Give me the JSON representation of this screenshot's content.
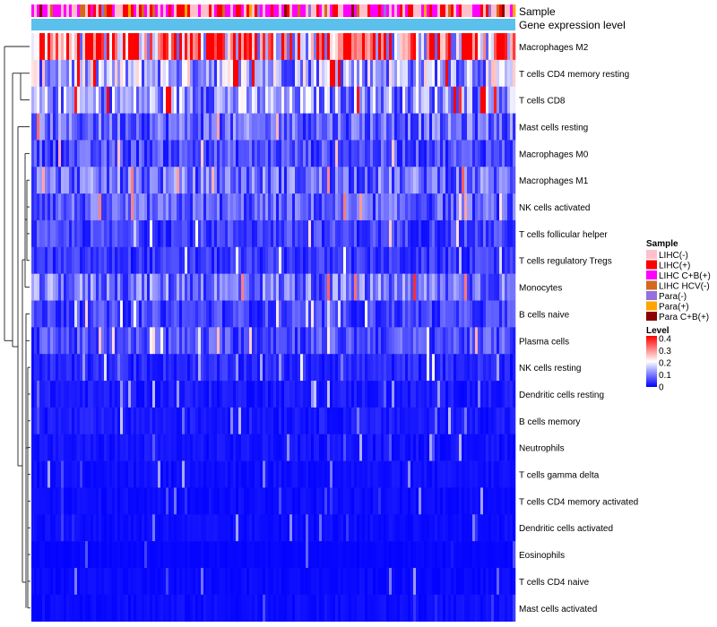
{
  "chart_data": {
    "type": "heatmap",
    "annotation_rows": [
      "Sample",
      "Gene expression level"
    ],
    "rows": [
      {
        "name": "Macrophages M2",
        "mean": 0.3
      },
      {
        "name": "T cells CD4 memory resting",
        "mean": 0.14
      },
      {
        "name": "T cells CD8",
        "mean": 0.12
      },
      {
        "name": "Mast cells resting",
        "mean": 0.08
      },
      {
        "name": "Macrophages M0",
        "mean": 0.06
      },
      {
        "name": "Macrophages M1",
        "mean": 0.085
      },
      {
        "name": "NK cells activated",
        "mean": 0.07
      },
      {
        "name": "T cells follicular helper",
        "mean": 0.05
      },
      {
        "name": "T cells regulatory  Tregs",
        "mean": 0.04
      },
      {
        "name": "Monocytes",
        "mean": 0.09
      },
      {
        "name": "B cells naive",
        "mean": 0.05
      },
      {
        "name": "Plasma cells",
        "mean": 0.06
      },
      {
        "name": "NK cells resting",
        "mean": 0.03
      },
      {
        "name": "Dendritic cells resting",
        "mean": 0.02
      },
      {
        "name": "B cells memory",
        "mean": 0.02
      },
      {
        "name": "Neutrophils",
        "mean": 0.015
      },
      {
        "name": "T cells gamma delta",
        "mean": 0.012
      },
      {
        "name": "T cells CD4 memory activated",
        "mean": 0.01
      },
      {
        "name": "Dendritic cells activated",
        "mean": 0.01
      },
      {
        "name": "Eosinophils",
        "mean": 0.005
      },
      {
        "name": "T cells CD4 naive",
        "mean": 0.008
      },
      {
        "name": "Mast cells activated",
        "mean": 0.01
      }
    ],
    "value_range": [
      0,
      0.4
    ],
    "color_scale": [
      "#0000ff",
      "#ffffff",
      "#ff0000"
    ],
    "expression_color": "#5bc0eb",
    "legend_sample": {
      "title": "Sample",
      "items": [
        {
          "label": "LIHC(-)",
          "color": "#ffc0cb"
        },
        {
          "label": "LIHC(+)",
          "color": "#ff0000"
        },
        {
          "label": "LIHC C+B(+)",
          "color": "#ff00ff"
        },
        {
          "label": "LIHC HCV(-)",
          "color": "#d2691e"
        },
        {
          "label": "Para(-)",
          "color": "#9370db"
        },
        {
          "label": "Para(+)",
          "color": "#ffa500"
        },
        {
          "label": "Para C+B(+)",
          "color": "#8b0000"
        }
      ]
    },
    "legend_level": {
      "title": "Level",
      "ticks": [
        "0.4",
        "0.3",
        "0.2",
        "0.1",
        "0"
      ]
    }
  }
}
